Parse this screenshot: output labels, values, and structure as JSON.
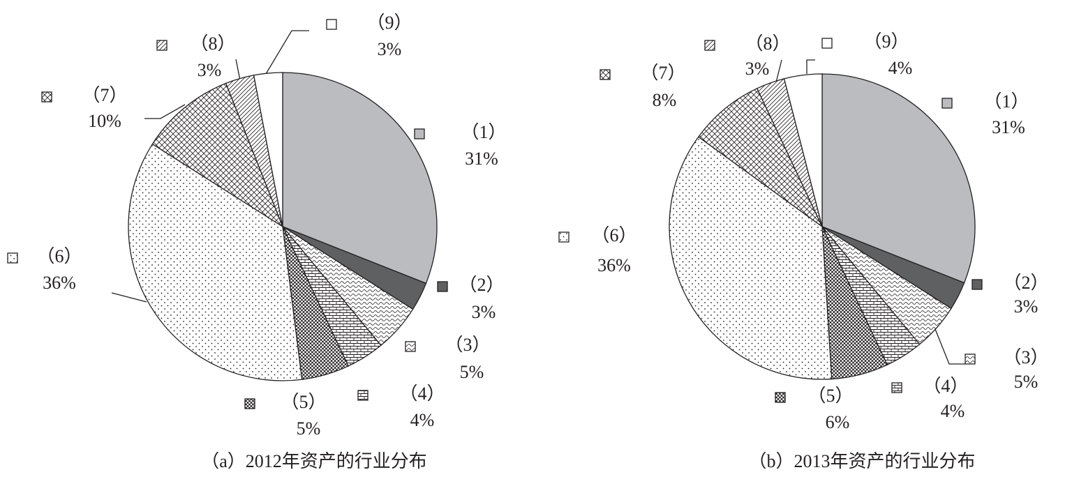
{
  "chart_data": [
    {
      "type": "pie",
      "title": "（a）2012年资产的行业分布",
      "categories": [
        "（1）",
        "（2）",
        "（3）",
        "（4）",
        "（5）",
        "（6）",
        "（7）",
        "（8）",
        "（9）"
      ],
      "values": [
        31,
        3,
        5,
        4,
        5,
        36,
        10,
        3,
        3
      ],
      "value_labels": [
        "31%",
        "3%",
        "5%",
        "4%",
        "5%",
        "36%",
        "10%",
        "3%",
        "3%"
      ]
    },
    {
      "type": "pie",
      "title": "（b）2013年资产的行业分布",
      "categories": [
        "（1）",
        "（2）",
        "（3）",
        "（4）",
        "（5）",
        "（6）",
        "（7）",
        "（8）",
        "（9）"
      ],
      "values": [
        31,
        3,
        5,
        4,
        6,
        36,
        8,
        3,
        4
      ],
      "value_labels": [
        "31%",
        "3%",
        "5%",
        "4%",
        "6%",
        "36%",
        "8%",
        "3%",
        "4%"
      ]
    }
  ]
}
